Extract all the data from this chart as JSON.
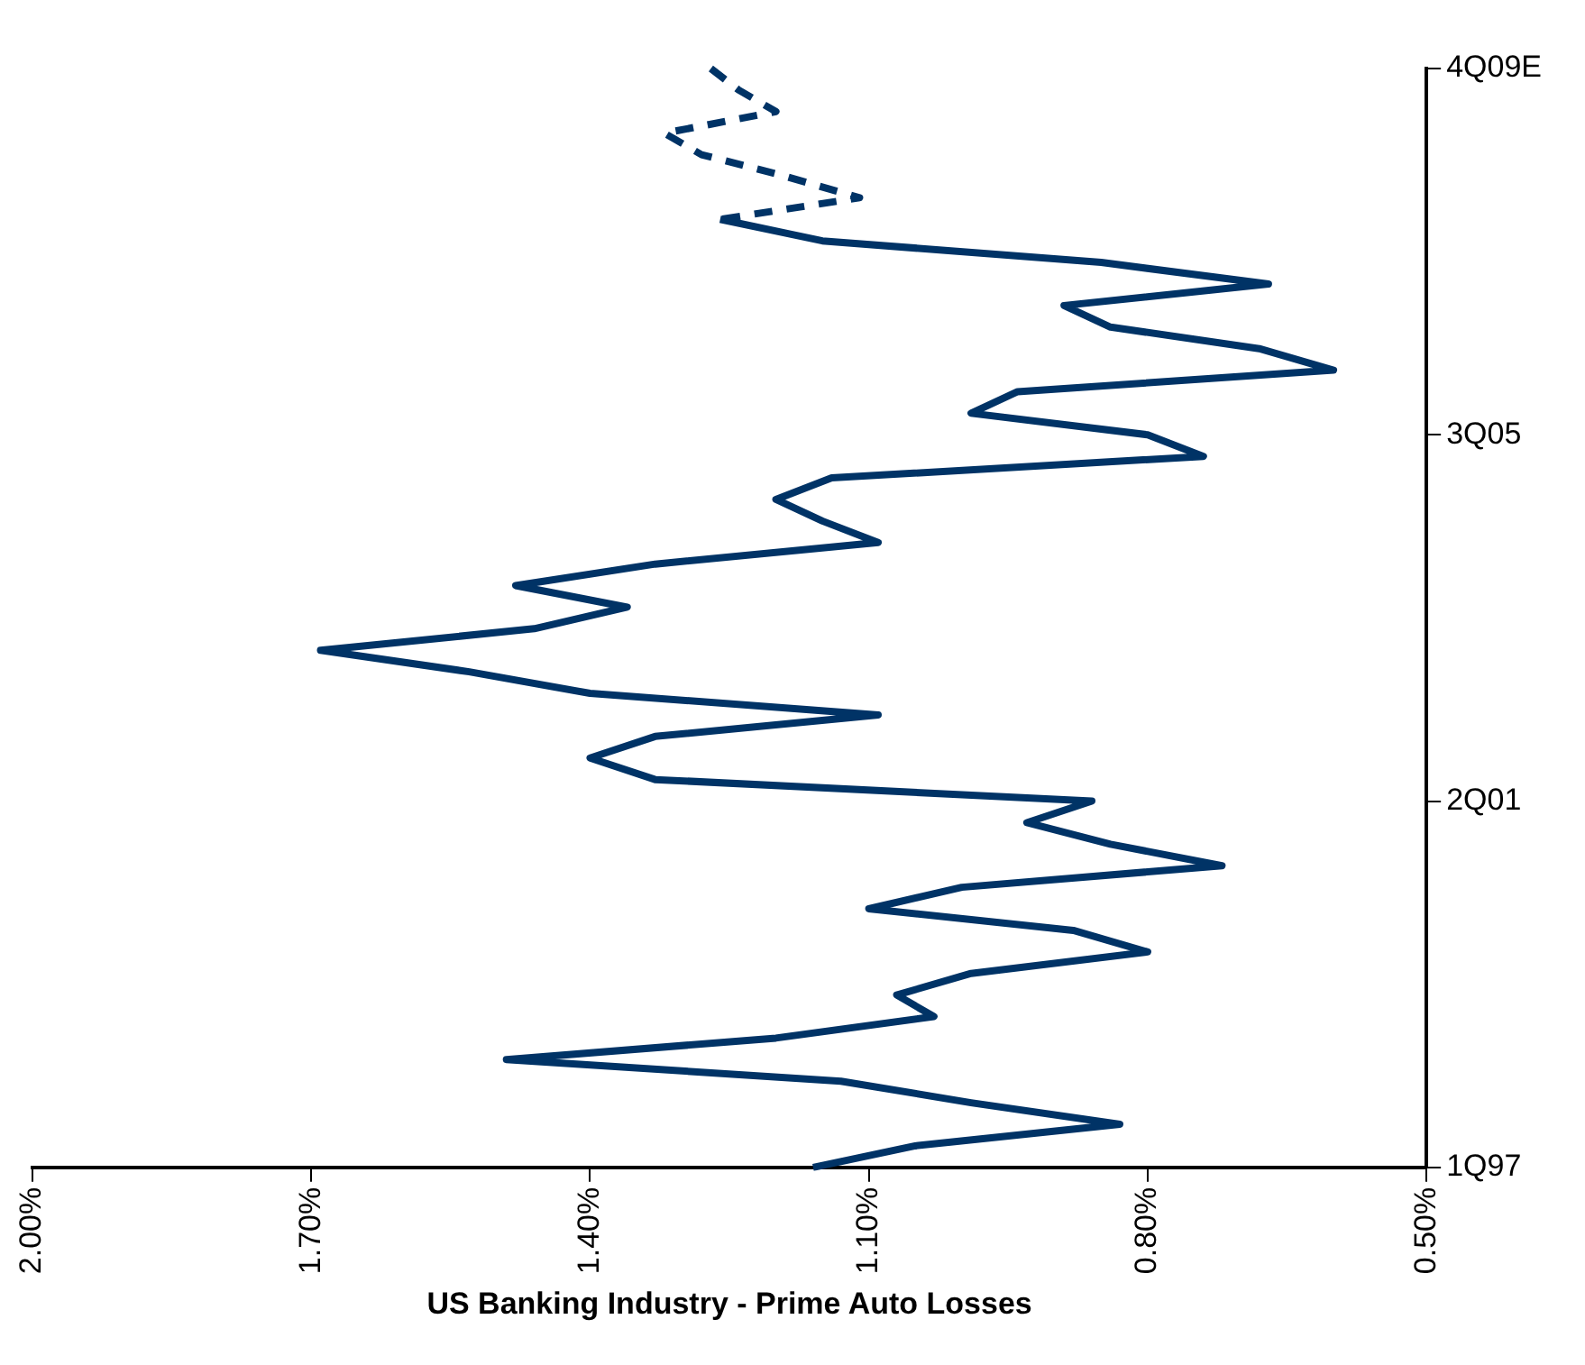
{
  "chart_data": {
    "type": "line",
    "orientation": "horizontal",
    "xlabel": "US Banking Industry - Prime Auto Losses",
    "categories": [
      "4Q09E",
      null,
      null,
      null,
      null,
      null,
      null,
      null,
      null,
      null,
      null,
      null,
      null,
      null,
      null,
      null,
      null,
      "3Q05",
      null,
      null,
      null,
      null,
      null,
      null,
      null,
      null,
      null,
      null,
      null,
      null,
      null,
      null,
      null,
      null,
      "2Q01",
      null,
      null,
      null,
      null,
      null,
      null,
      null,
      null,
      null,
      null,
      null,
      null,
      null,
      null,
      null,
      null,
      "1Q97"
    ],
    "series": [
      {
        "color": "#003366",
        "line_style": "solid",
        "values": [
          null,
          null,
          null,
          null,
          null,
          null,
          null,
          1.26,
          1.15,
          0.85,
          0.67,
          0.89,
          0.84,
          0.68,
          0.6,
          0.94,
          0.99,
          0.8,
          0.74,
          1.14,
          1.2,
          1.15,
          1.09,
          1.33,
          1.48,
          1.36,
          1.46,
          1.69,
          1.53,
          1.4,
          1.09,
          1.33,
          1.4,
          1.33,
          0.86,
          0.93,
          0.84,
          0.72,
          1.0,
          1.1,
          0.88,
          0.8,
          0.99,
          1.07,
          1.03,
          1.2,
          1.49,
          1.13,
          0.99,
          0.83,
          1.05,
          1.16
        ]
      },
      {
        "color": "#003366",
        "line_style": "dashed",
        "values": [
          1.27,
          1.24,
          1.2,
          1.32,
          1.28,
          1.19,
          1.11,
          1.26,
          null,
          null,
          null,
          null,
          null,
          null,
          null,
          null,
          null,
          null,
          null,
          null,
          null,
          null,
          null,
          null,
          null,
          null,
          null,
          null,
          null,
          null,
          null,
          null,
          null,
          null,
          null,
          null,
          null,
          null,
          null,
          null,
          null,
          null,
          null,
          null,
          null,
          null,
          null,
          null,
          null,
          null,
          null,
          null
        ]
      }
    ],
    "xlim": [
      2.0,
      0.5
    ],
    "xticks": [
      {
        "value": 2.0,
        "label": "2.00%"
      },
      {
        "value": 1.7,
        "label": "1.70%"
      },
      {
        "value": 1.4,
        "label": "1.40%"
      },
      {
        "value": 1.1,
        "label": "1.10%"
      },
      {
        "value": 0.8,
        "label": "0.80%"
      },
      {
        "value": 0.5,
        "label": "0.50%"
      }
    ],
    "grid": false,
    "legend": false,
    "marker": "none"
  }
}
